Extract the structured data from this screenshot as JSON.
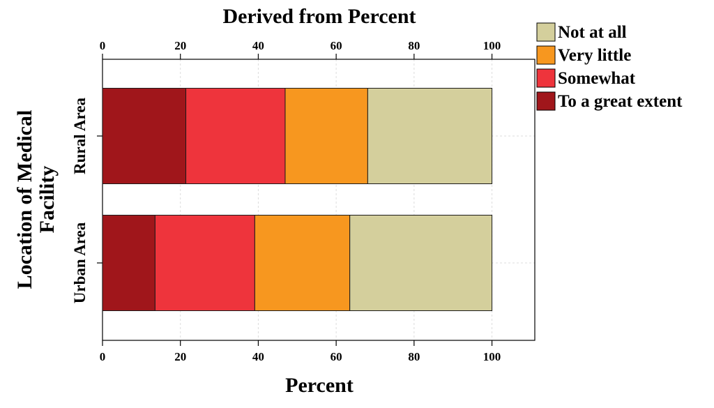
{
  "chart_data": {
    "type": "bar",
    "orientation": "horizontal",
    "stacked": true,
    "title": "Derived from Percent",
    "xlabel": "Percent",
    "ylabel": "Location of Medical\nFacility",
    "xlim": [
      0,
      111
    ],
    "xticks": [
      0,
      20,
      40,
      60,
      80,
      100
    ],
    "grid": true,
    "legend_position": "top-right",
    "categories": [
      "Rural Area",
      "Urban Area"
    ],
    "series": [
      {
        "name": "To a great extent",
        "color": "#a0161b",
        "values": [
          21.4,
          13.5
        ]
      },
      {
        "name": "Somewhat",
        "color": "#ee343c",
        "values": [
          25.5,
          25.6
        ]
      },
      {
        "name": "Very little",
        "color": "#f7971f",
        "values": [
          21.2,
          24.4
        ]
      },
      {
        "name": "Not at all",
        "color": "#d4cf9c",
        "values": [
          31.9,
          36.5
        ]
      }
    ],
    "legend_order": [
      "Not at all",
      "Very little",
      "Somewhat",
      "To a great extent"
    ]
  }
}
